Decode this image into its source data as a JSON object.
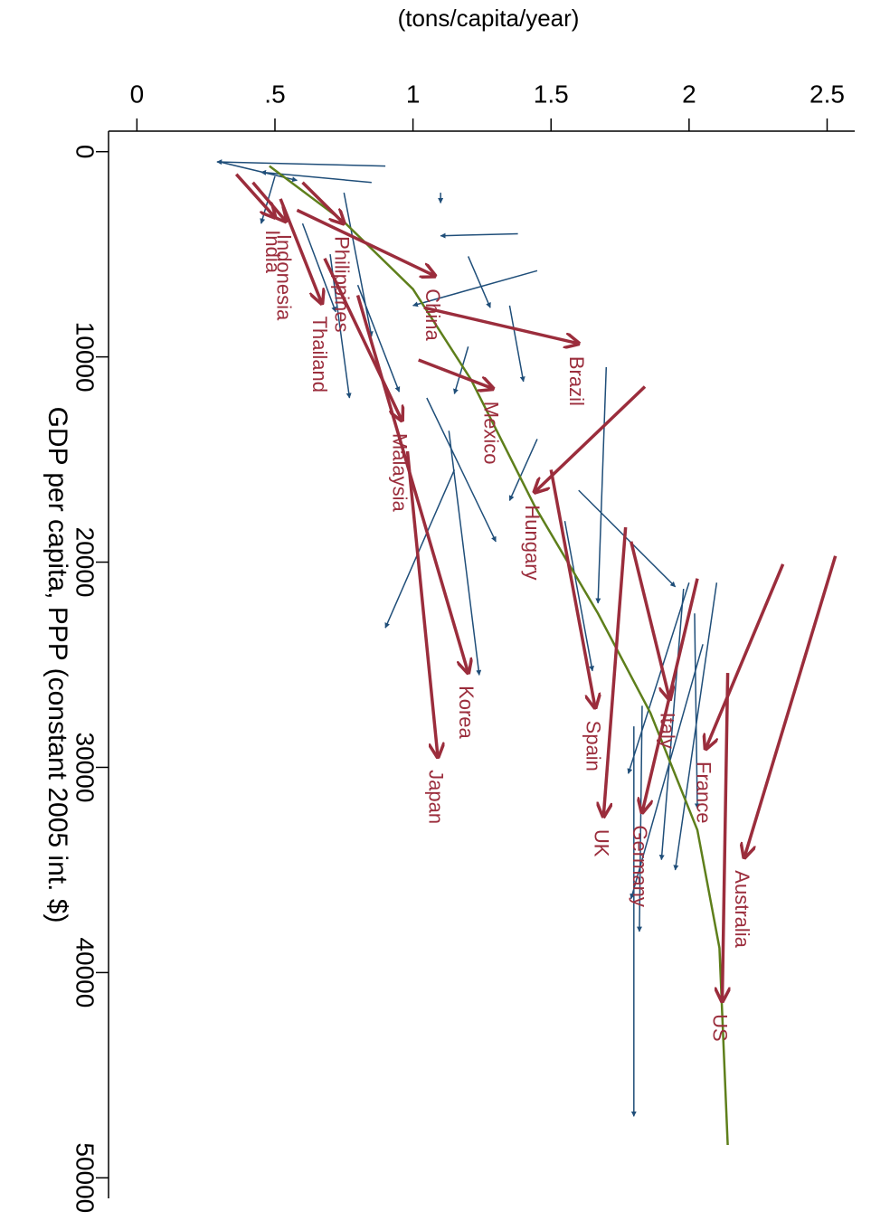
{
  "chart_data": {
    "type": "arrow-scatter",
    "title": "(tons/capita/year)",
    "y_label": "GDP per capita, PPP (constant 2005 int. $)",
    "xlim": [
      -0.07,
      2.6
    ],
    "ylim": [
      -1000,
      51000
    ],
    "xticks": [
      0,
      {
        "value": 0.5,
        "label": ".5"
      },
      1,
      1.5,
      2,
      2.5
    ],
    "yticks": [
      0,
      10000,
      20000,
      30000,
      40000,
      50000
    ],
    "highlighted": {
      "color": "#9b2d3c",
      "arrows": [
        {
          "label": "India",
          "x": [
            0.36,
            0.5
          ],
          "y": [
            1100,
            3200
          ]
        },
        {
          "label": "Indonesia",
          "x": [
            0.42,
            0.54
          ],
          "y": [
            1500,
            3400
          ]
        },
        {
          "label": "Thailand",
          "x": [
            0.52,
            0.67
          ],
          "y": [
            2300,
            7400
          ]
        },
        {
          "label": "Philippines",
          "x": [
            0.6,
            0.75
          ],
          "y": [
            1500,
            3500
          ]
        },
        {
          "label": "China",
          "x": [
            0.58,
            1.08
          ],
          "y": [
            2850,
            6060
          ]
        },
        {
          "label": "Brazil",
          "x": [
            1.04,
            1.6
          ],
          "y": [
            7600,
            9350
          ]
        },
        {
          "label": "Mexico",
          "x": [
            1.02,
            1.29
          ],
          "y": [
            10150,
            11550
          ]
        },
        {
          "label": "Malaysia",
          "x": [
            0.68,
            0.96
          ],
          "y": [
            5200,
            13100
          ]
        },
        {
          "label": "Hungary",
          "x": [
            1.84,
            1.44
          ],
          "y": [
            11450,
            16600
          ]
        },
        {
          "label": "Korea",
          "x": [
            0.8,
            1.2
          ],
          "y": [
            7000,
            25400
          ]
        },
        {
          "label": "Japan",
          "x": [
            0.98,
            1.09
          ],
          "y": [
            14600,
            29500
          ]
        },
        {
          "label": "Spain",
          "x": [
            1.5,
            1.66
          ],
          "y": [
            15500,
            27100
          ]
        },
        {
          "label": "UK",
          "x": [
            1.77,
            1.69
          ],
          "y": [
            18300,
            32400
          ]
        },
        {
          "label": "Germany",
          "x": [
            2.03,
            1.83
          ],
          "y": [
            20800,
            32200
          ]
        },
        {
          "label": "Italy",
          "x": [
            1.79,
            1.93
          ],
          "y": [
            19000,
            26700
          ]
        },
        {
          "label": "France",
          "x": [
            2.34,
            2.06
          ],
          "y": [
            20100,
            29100
          ]
        },
        {
          "label": "Australia",
          "x": [
            2.53,
            2.2
          ],
          "y": [
            19700,
            34400
          ]
        },
        {
          "label": "US",
          "x": [
            2.14,
            2.12
          ],
          "y": [
            25400,
            41400
          ]
        }
      ]
    },
    "others": {
      "color": "#1f4e79",
      "arrows": [
        {
          "x": [
            0.9,
            0.29
          ],
          "y": [
            700,
            500
          ]
        },
        {
          "x": [
            0.85,
            0.45
          ],
          "y": [
            1500,
            1000
          ]
        },
        {
          "x": [
            1.1,
            1.1
          ],
          "y": [
            2000,
            2500
          ]
        },
        {
          "x": [
            1.38,
            1.1
          ],
          "y": [
            4000,
            4100
          ]
        },
        {
          "x": [
            1.45,
            1.0
          ],
          "y": [
            5800,
            7500
          ]
        },
        {
          "x": [
            1.2,
            1.28
          ],
          "y": [
            5100,
            7600
          ]
        },
        {
          "x": [
            1.35,
            1.4
          ],
          "y": [
            7500,
            11200
          ]
        },
        {
          "x": [
            1.7,
            1.67
          ],
          "y": [
            10500,
            22000
          ]
        },
        {
          "x": [
            1.05,
            1.3
          ],
          "y": [
            12000,
            19000
          ]
        },
        {
          "x": [
            1.15,
            0.9
          ],
          "y": [
            15500,
            23200
          ]
        },
        {
          "x": [
            1.13,
            1.24
          ],
          "y": [
            13600,
            25500
          ]
        },
        {
          "x": [
            1.45,
            1.35
          ],
          "y": [
            14000,
            17000
          ]
        },
        {
          "x": [
            1.55,
            1.65
          ],
          "y": [
            18000,
            25300
          ]
        },
        {
          "x": [
            1.6,
            1.95
          ],
          "y": [
            16500,
            21200
          ]
        },
        {
          "x": [
            2.0,
            1.78
          ],
          "y": [
            21000,
            30300
          ]
        },
        {
          "x": [
            1.98,
            1.9
          ],
          "y": [
            21300,
            34500
          ]
        },
        {
          "x": [
            2.1,
            1.95
          ],
          "y": [
            21000,
            35000
          ]
        },
        {
          "x": [
            2.05,
            1.79
          ],
          "y": [
            24000,
            36400
          ]
        },
        {
          "x": [
            1.8,
            1.8
          ],
          "y": [
            28000,
            47000
          ]
        },
        {
          "x": [
            1.83,
            1.82
          ],
          "y": [
            27000,
            38000
          ]
        },
        {
          "x": [
            2.02,
            2.03
          ],
          "y": [
            22500,
            32000
          ]
        },
        {
          "x": [
            0.7,
            0.77
          ],
          "y": [
            5000,
            12000
          ]
        },
        {
          "x": [
            0.8,
            0.95
          ],
          "y": [
            6500,
            11700
          ]
        },
        {
          "x": [
            0.6,
            0.72
          ],
          "y": [
            3500,
            7800
          ]
        },
        {
          "x": [
            0.75,
            0.85
          ],
          "y": [
            2000,
            9000
          ]
        },
        {
          "x": [
            0.3,
            0.58
          ],
          "y": [
            500,
            1400
          ]
        },
        {
          "x": [
            0.5,
            0.45
          ],
          "y": [
            1200,
            3500
          ]
        },
        {
          "x": [
            1.2,
            1.15
          ],
          "y": [
            9500,
            11800
          ]
        }
      ]
    },
    "fit": {
      "color": "#5e7f1b",
      "x": [
        0.48,
        0.75,
        1.0,
        1.21,
        1.44,
        1.67,
        1.86,
        2.03,
        2.11,
        2.14
      ],
      "y": [
        700,
        3420,
        6700,
        11100,
        17250,
        22500,
        27350,
        33050,
        38800,
        48400
      ]
    }
  }
}
